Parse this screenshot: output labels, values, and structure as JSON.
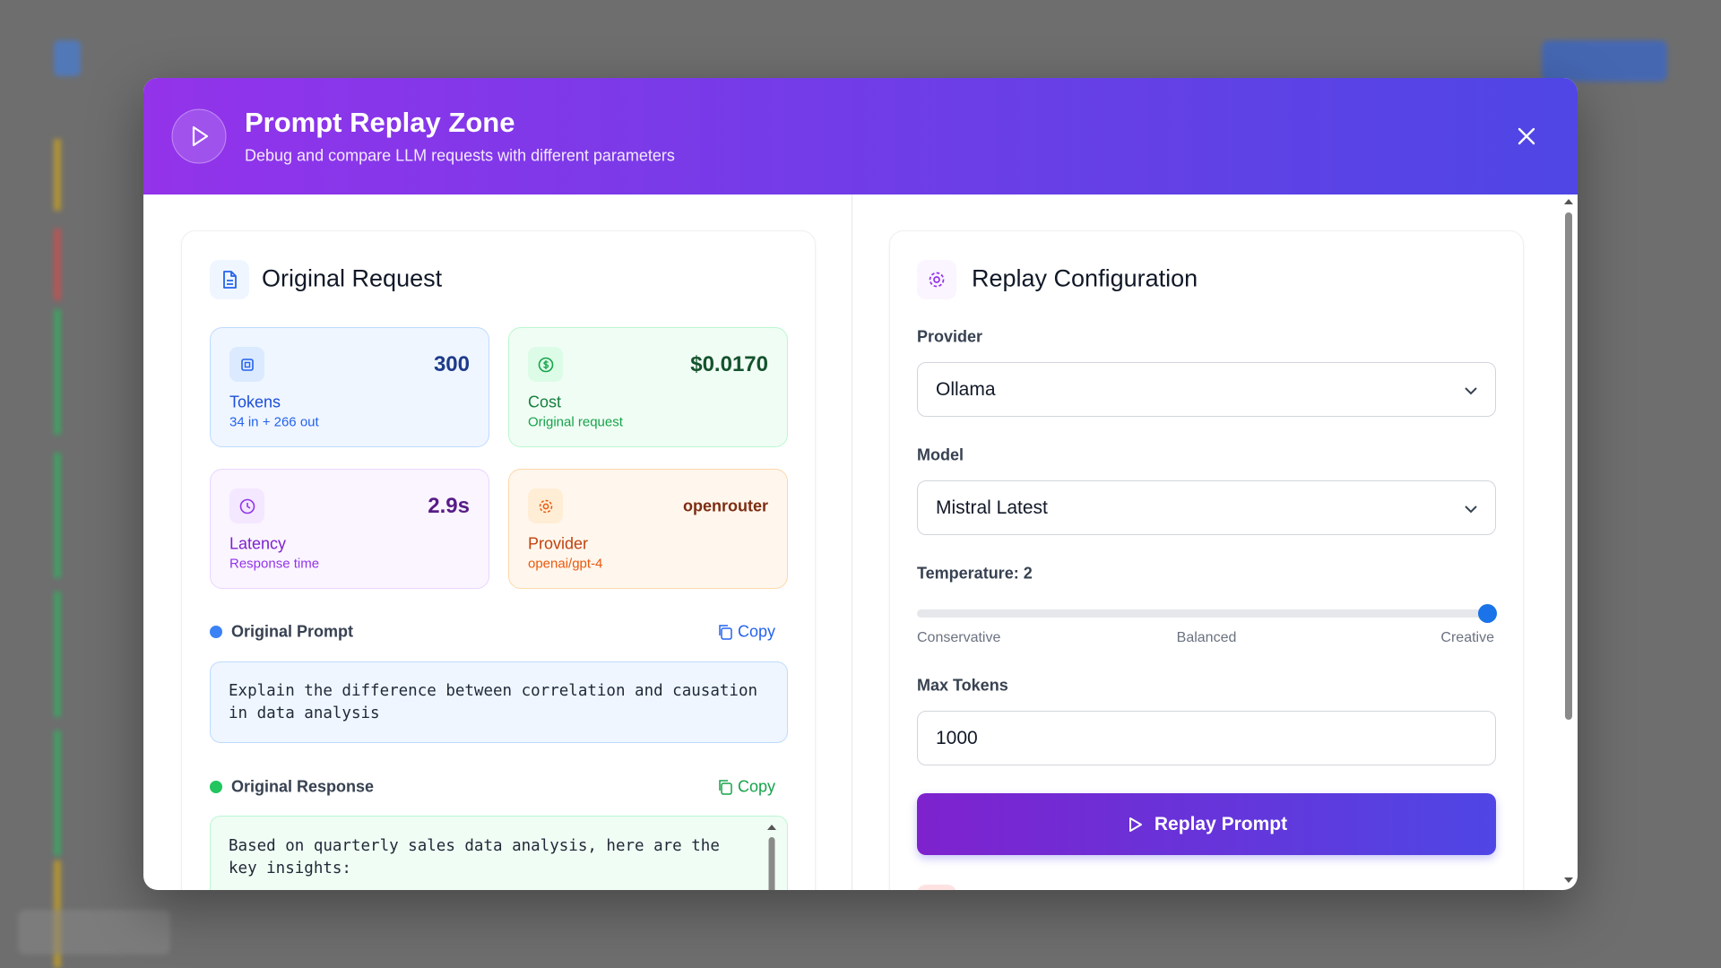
{
  "header": {
    "title": "Prompt Replay Zone",
    "subtitle": "Debug and compare LLM requests with different parameters"
  },
  "original_request": {
    "title": "Original Request",
    "stats": [
      {
        "value": "300",
        "label": "Tokens",
        "detail": "34 in + 266 out"
      },
      {
        "value": "$0.0170",
        "label": "Cost",
        "detail": "Original request"
      },
      {
        "value": "2.9s",
        "label": "Latency",
        "detail": "Response time"
      },
      {
        "value": "openrouter",
        "label": "Provider",
        "detail": "openai/gpt-4"
      }
    ],
    "prompt": {
      "label": "Original Prompt",
      "copy": "Copy",
      "text": "Explain the difference between correlation and causation in data analysis"
    },
    "response": {
      "label": "Original Response",
      "copy": "Copy",
      "text": "Based on quarterly sales data analysis, here are the key insights:"
    }
  },
  "replay_configuration": {
    "title": "Replay Configuration",
    "provider": {
      "label": "Provider",
      "value": "Ollama"
    },
    "model": {
      "label": "Model",
      "value": "Mistral Latest"
    },
    "temperature": {
      "label": "Temperature: 2",
      "scale": [
        "Conservative",
        "Balanced",
        "Creative"
      ]
    },
    "max_tokens": {
      "label": "Max Tokens",
      "value": "1000"
    },
    "button": "Replay Prompt"
  }
}
